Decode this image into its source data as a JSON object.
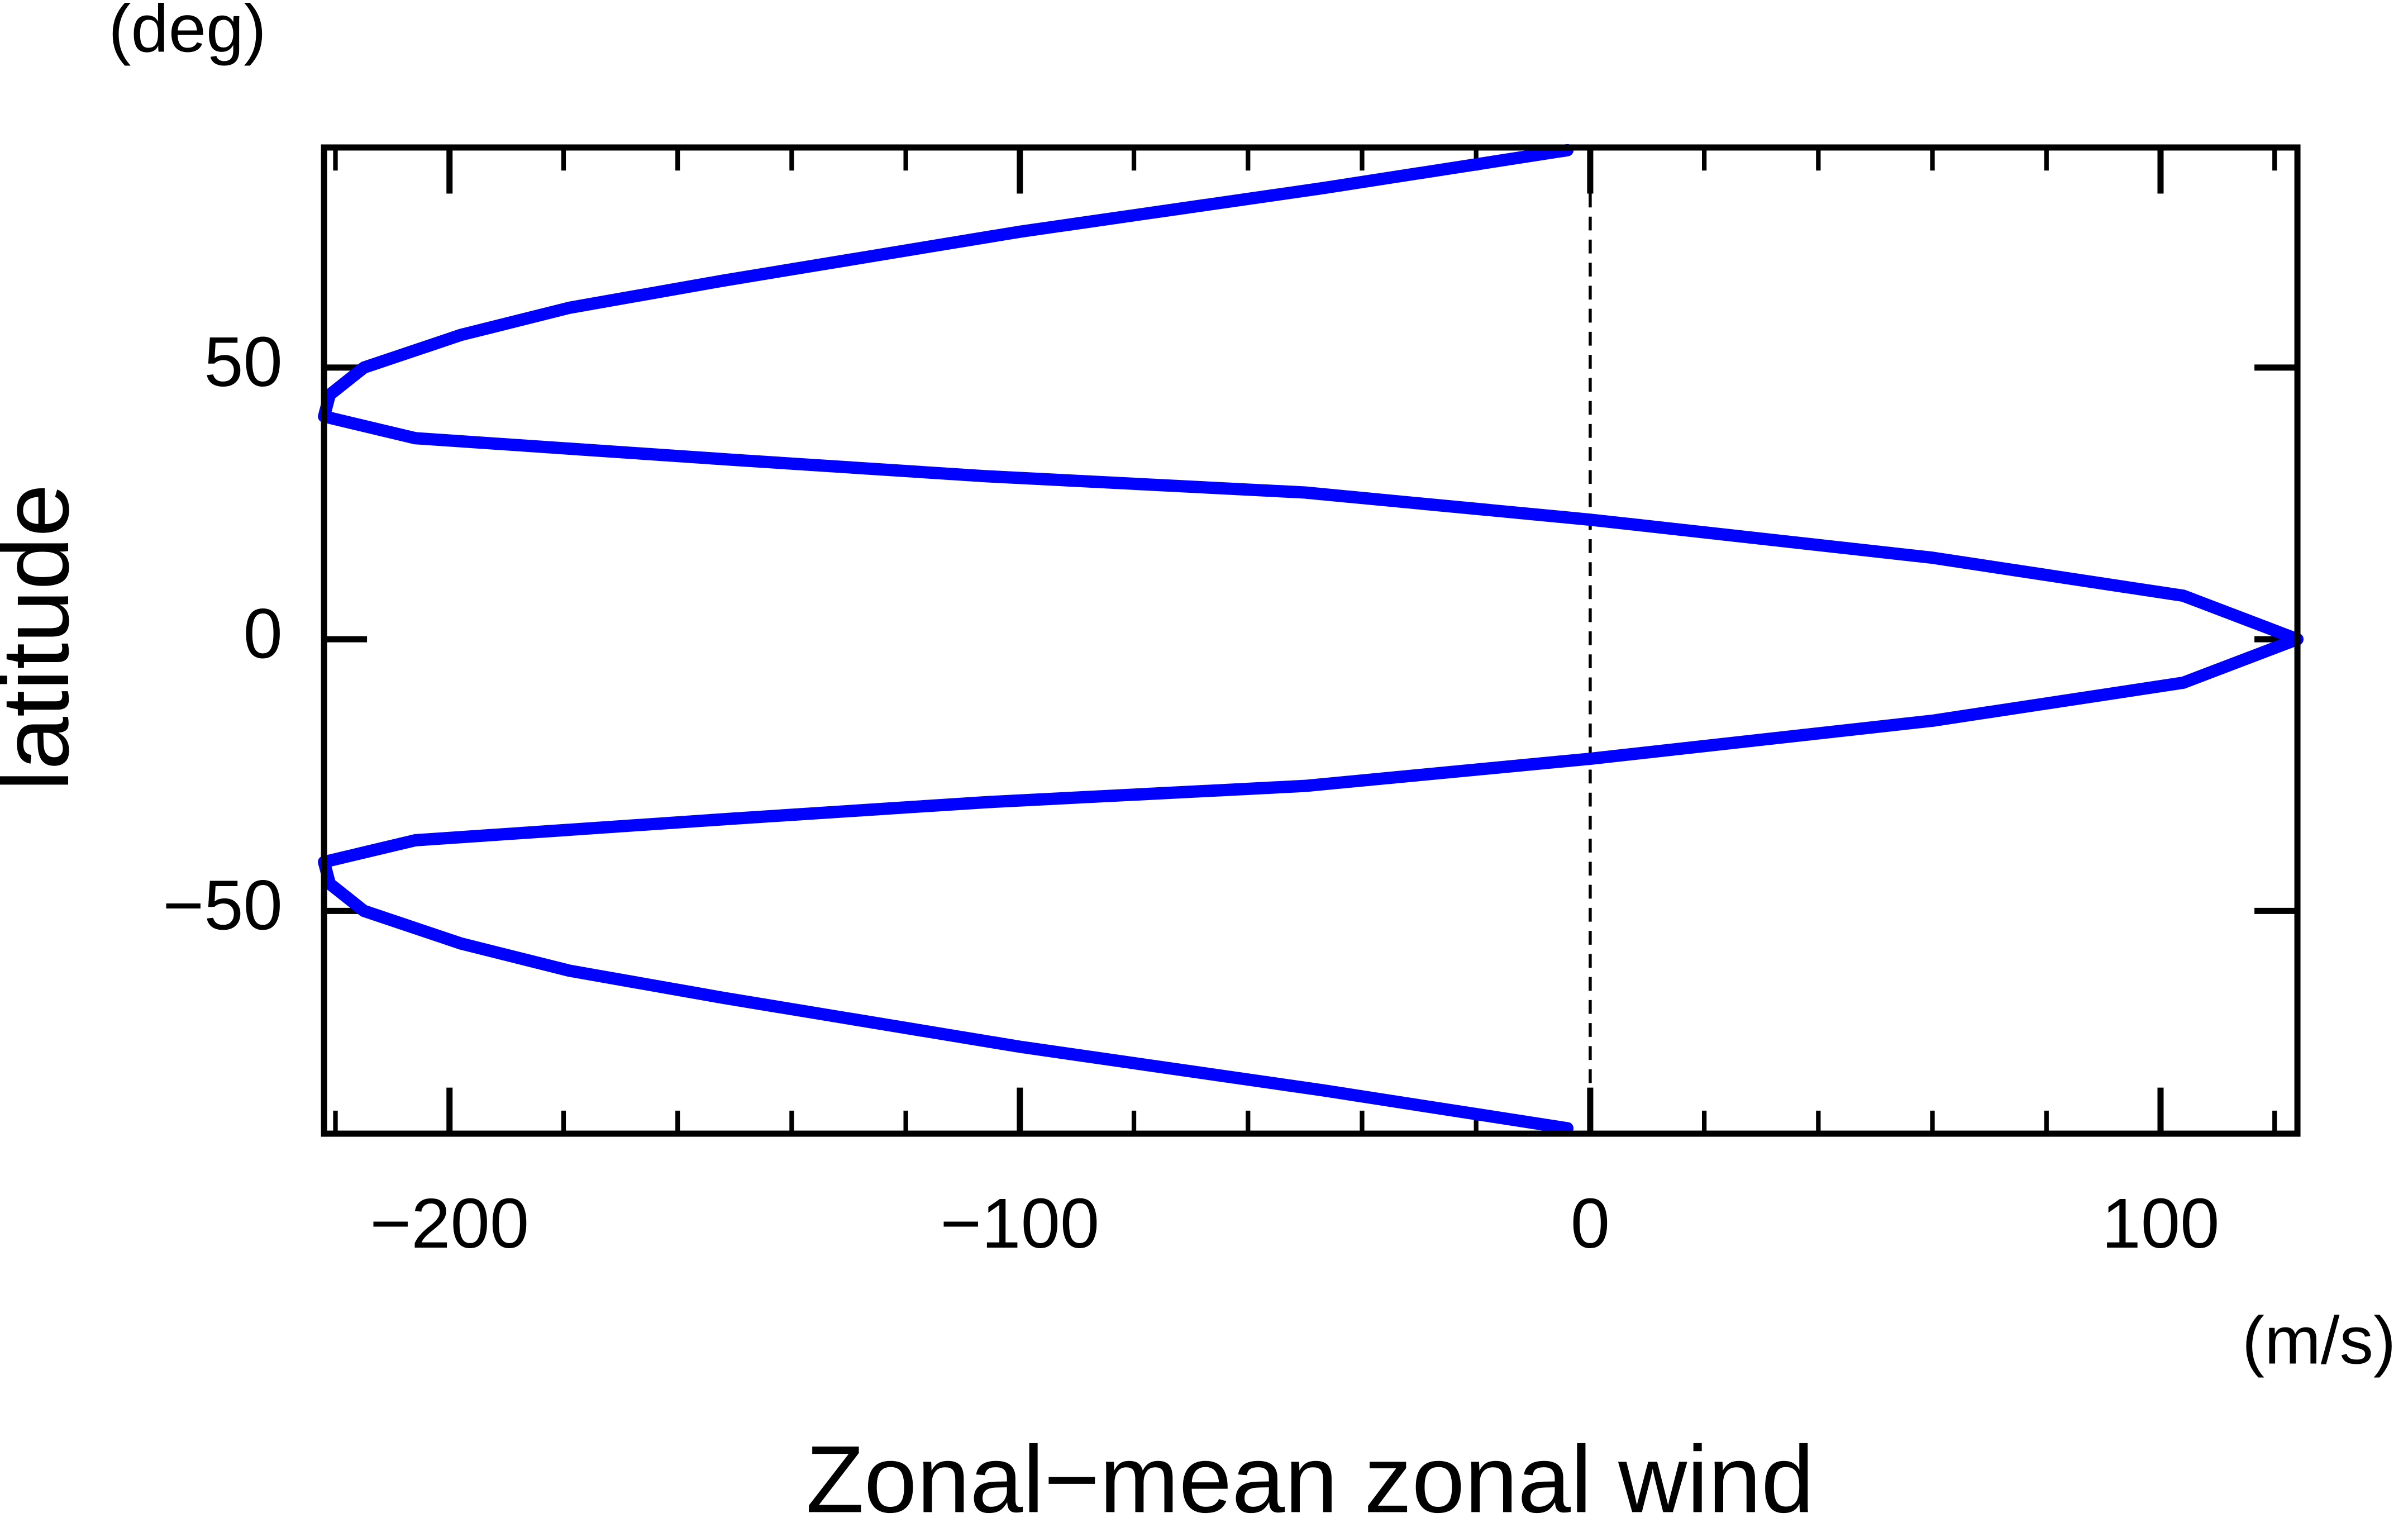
{
  "chart_data": {
    "type": "line",
    "x_unit": "(m/s)",
    "y_unit": "(deg)",
    "xlabel": "Zonal−mean zonal wind",
    "ylabel": "latitude",
    "xlim": [
      -222,
      124
    ],
    "ylim": [
      -91,
      90.5
    ],
    "xticks": [
      {
        "value": -200,
        "label": "−200"
      },
      {
        "value": -100,
        "label": "−100"
      },
      0,
      100
    ],
    "xminorticks": [
      -220,
      -180,
      -160,
      -140,
      -120,
      -80,
      -60,
      -40,
      -20,
      20,
      40,
      60,
      80,
      120
    ],
    "yticks": [
      {
        "value": -50,
        "label": "−50"
      },
      0,
      50
    ],
    "vline": 0,
    "x": [
      -4,
      -47,
      -100,
      -152,
      -179,
      -198,
      -215,
      -221,
      -222,
      -206,
      -150,
      -106,
      -50,
      0,
      60,
      104,
      124,
      104,
      60,
      0,
      -50,
      -106,
      -150,
      -206,
      -222,
      -221,
      -215,
      -198,
      -179,
      -152,
      -100,
      -47,
      -4
    ],
    "series": [
      {
        "name": "zonal wind",
        "color": "#0000ff",
        "values": [
          90,
          83,
          75,
          66,
          61,
          56,
          50,
          45,
          41,
          37,
          33,
          30,
          27,
          22,
          15,
          8,
          0,
          -8,
          -15,
          -22,
          -27,
          -30,
          -33,
          -37,
          -41,
          -45,
          -50,
          -56,
          -61,
          -66,
          -75,
          -83,
          -90
        ]
      }
    ]
  }
}
